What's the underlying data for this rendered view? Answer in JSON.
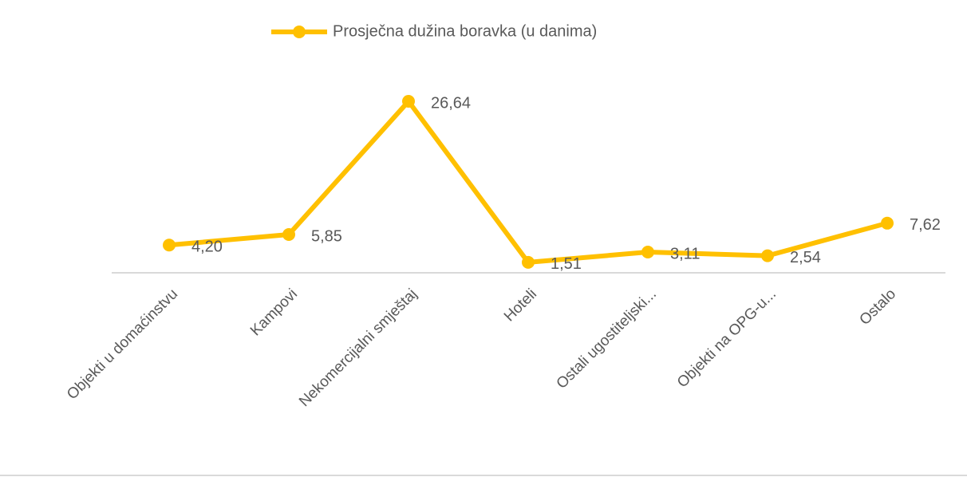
{
  "chart_data": {
    "type": "line",
    "categories": [
      "Objekti u domaćinstvu",
      "Kampovi",
      "Nekomercijalni smještaj",
      "Hoteli",
      "Ostali ugostiteljski...",
      "Objekti na OPG-u...",
      "Ostalo"
    ],
    "series": [
      {
        "name": "Prosječna dužina boravka (u danima)",
        "color": "#FFC000",
        "values": [
          4.2,
          5.85,
          26.64,
          1.51,
          3.11,
          2.54,
          7.62
        ],
        "value_labels": [
          "4,20",
          "5,85",
          "26,64",
          "1,51",
          "3,11",
          "2,54",
          "7,62"
        ]
      }
    ],
    "ylim": [
      0,
      30
    ],
    "legend": "top"
  }
}
